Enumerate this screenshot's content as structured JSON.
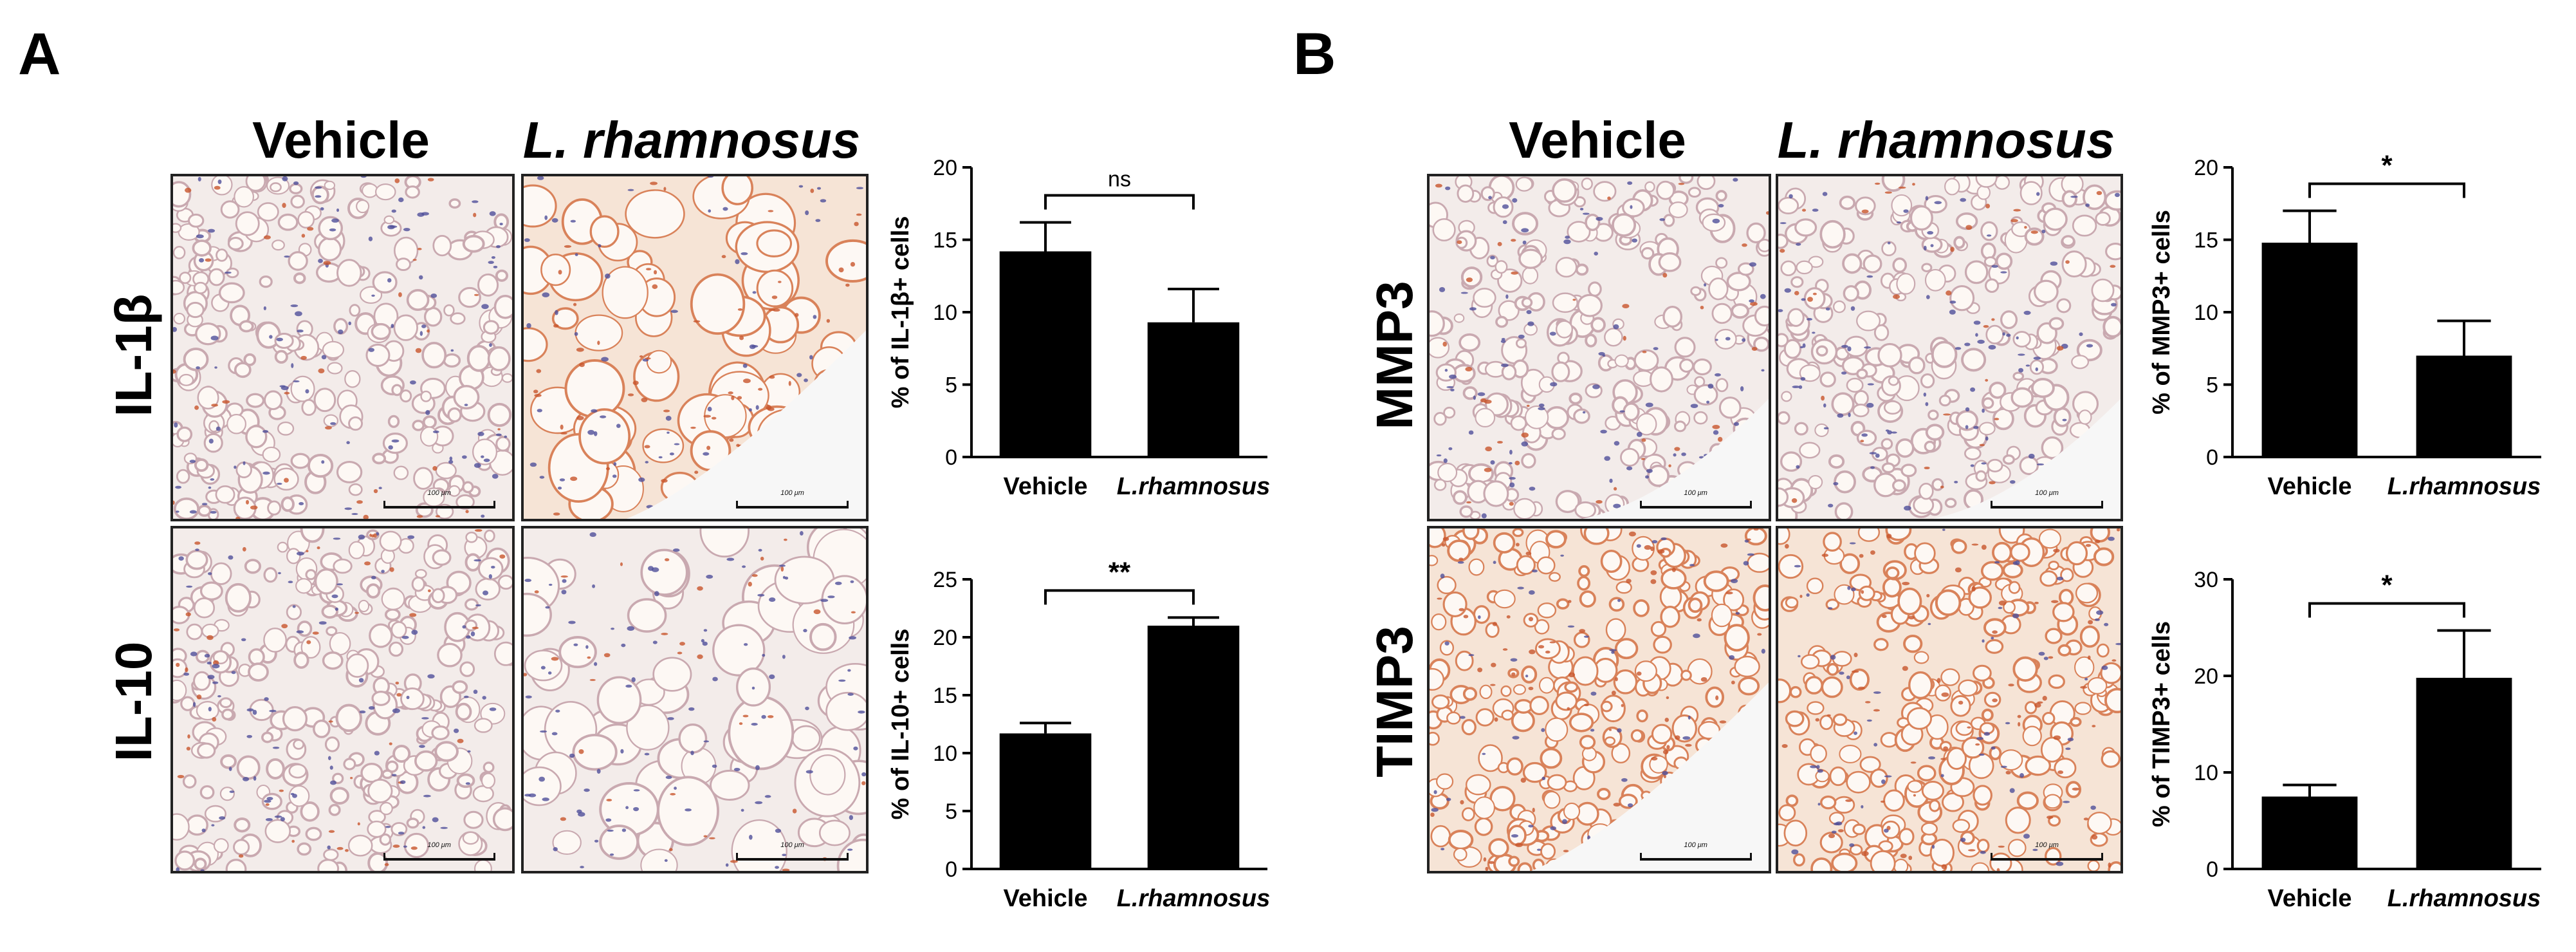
{
  "panels": [
    {
      "letter": "A",
      "columns": [
        "Vehicle",
        "L. rhamnosus"
      ],
      "rows": [
        {
          "label": "IL-1β",
          "images": [
            {
              "scale": "100 μm",
              "tint": "vehicle-il1b"
            },
            {
              "scale": "100 μm",
              "tint": "lr-il1b"
            }
          ]
        },
        {
          "label": "IL-10",
          "images": [
            {
              "scale": "100 μm",
              "tint": "vehicle-il10"
            },
            {
              "scale": "100 μm",
              "tint": "lr-il10"
            }
          ]
        }
      ]
    },
    {
      "letter": "B",
      "columns": [
        "Vehicle",
        "L. rhamnosus"
      ],
      "rows": [
        {
          "label": "MMP3",
          "images": [
            {
              "scale": "100 μm",
              "tint": "vehicle-mmp3"
            },
            {
              "scale": "100 μm",
              "tint": "lr-mmp3"
            }
          ]
        },
        {
          "label": "TIMP3",
          "images": [
            {
              "scale": "100 μm",
              "tint": "vehicle-timp3"
            },
            {
              "scale": "100 μm",
              "tint": "lr-timp3"
            }
          ]
        }
      ]
    }
  ],
  "chart_data": [
    {
      "type": "bar",
      "categories": [
        "Vehicle",
        "L.rhamnosus"
      ],
      "values": [
        14.2,
        9.3
      ],
      "errors": [
        2.0,
        2.3
      ],
      "ylabel": "% of IL-1β+ cells",
      "ylim": [
        0,
        20
      ],
      "yticks": [
        0,
        5,
        10,
        15,
        20
      ],
      "significance": "ns",
      "bar_color": "#000000"
    },
    {
      "type": "bar",
      "categories": [
        "Vehicle",
        "L.rhamnosus"
      ],
      "values": [
        11.7,
        21.0
      ],
      "errors": [
        0.9,
        0.7
      ],
      "ylabel": "% of IL-10+ cells",
      "ylim": [
        0,
        25
      ],
      "yticks": [
        0,
        5,
        10,
        15,
        20,
        25
      ],
      "significance": "**",
      "bar_color": "#000000"
    },
    {
      "type": "bar",
      "categories": [
        "Vehicle",
        "L.rhamnosus"
      ],
      "values": [
        14.8,
        7.0
      ],
      "errors": [
        2.2,
        2.4
      ],
      "ylabel": "% of MMP3+ cells",
      "ylim": [
        0,
        20
      ],
      "yticks": [
        0,
        5,
        10,
        15,
        20
      ],
      "significance": "*",
      "bar_color": "#000000"
    },
    {
      "type": "bar",
      "categories": [
        "Vehicle",
        "L.rhamnosus"
      ],
      "values": [
        7.5,
        19.8
      ],
      "errors": [
        1.2,
        4.9
      ],
      "ylabel": "% of TIMP3+ cells",
      "ylim": [
        0,
        30
      ],
      "yticks": [
        0,
        10,
        20,
        30
      ],
      "significance": "*",
      "bar_color": "#000000"
    }
  ]
}
